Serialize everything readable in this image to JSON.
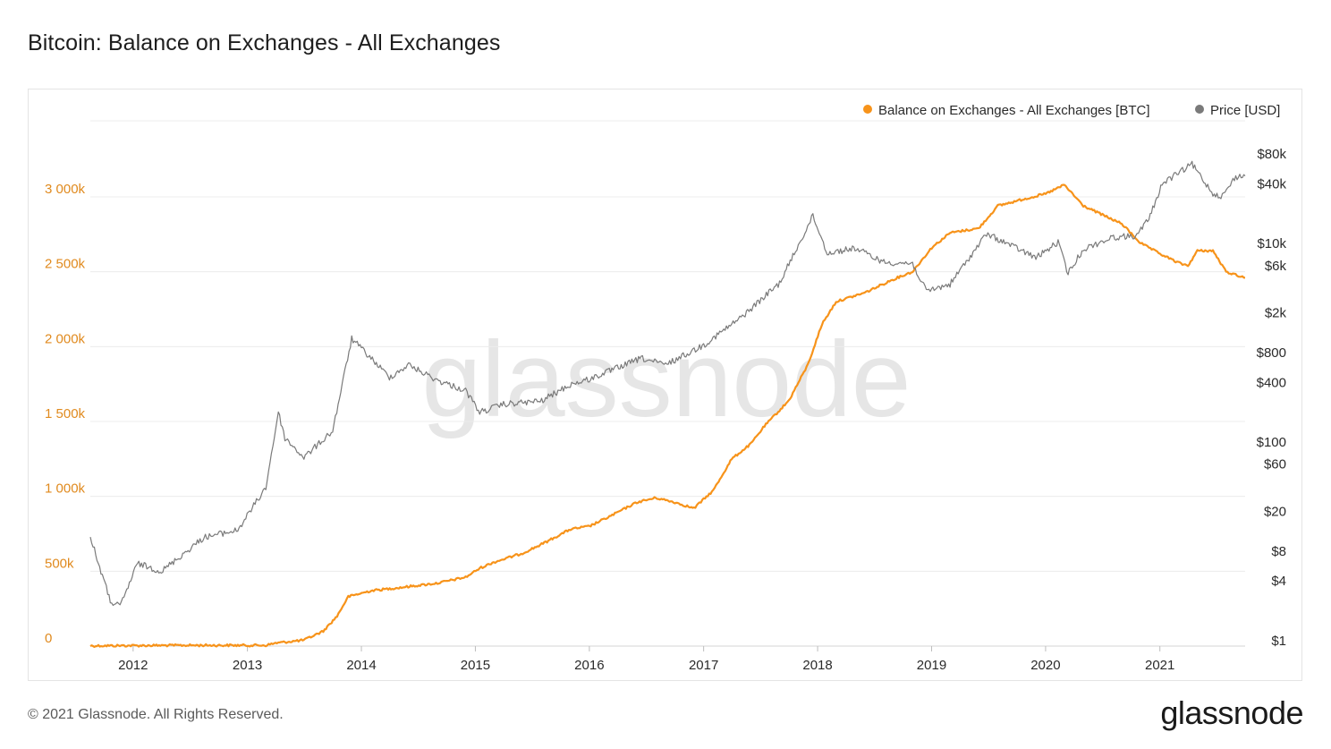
{
  "header": {
    "title": "Bitcoin: Balance on Exchanges - All Exchanges"
  },
  "footer": {
    "copyright": "© 2021 Glassnode. All Rights Reserved.",
    "logo": "glassnode"
  },
  "watermark": "glassnode",
  "chart_data": {
    "type": "line",
    "title": "Bitcoin: Balance on Exchanges - All Exchanges",
    "legend_position": "top-right",
    "grid": true,
    "x_ticks": [
      "2012",
      "2013",
      "2014",
      "2015",
      "2016",
      "2017",
      "2018",
      "2019",
      "2020",
      "2021"
    ],
    "y_left": {
      "range": [
        0,
        3000000
      ],
      "ticks": [
        {
          "value": 0,
          "label": "0"
        },
        {
          "value": 500000,
          "label": "500k"
        },
        {
          "value": 1000000,
          "label": "1 000k"
        },
        {
          "value": 1500000,
          "label": "1 500k"
        },
        {
          "value": 2000000,
          "label": "2 000k"
        },
        {
          "value": 2500000,
          "label": "2 500k"
        },
        {
          "value": 3000000,
          "label": "3 000k"
        }
      ]
    },
    "y_right": {
      "scale": "log",
      "ticks": [
        {
          "value": 1,
          "label": "$1"
        },
        {
          "value": 4,
          "label": "$4"
        },
        {
          "value": 8,
          "label": "$8"
        },
        {
          "value": 20,
          "label": "$20"
        },
        {
          "value": 60,
          "label": "$60"
        },
        {
          "value": 100,
          "label": "$100"
        },
        {
          "value": 400,
          "label": "$400"
        },
        {
          "value": 800,
          "label": "$800"
        },
        {
          "value": 2000,
          "label": "$2k"
        },
        {
          "value": 6000,
          "label": "$6k"
        },
        {
          "value": 10000,
          "label": "$10k"
        },
        {
          "value": 40000,
          "label": "$40k"
        },
        {
          "value": 80000,
          "label": "$80k"
        }
      ]
    },
    "series": [
      {
        "name": "Balance on Exchanges - All Exchanges [BTC]",
        "color": "#f7931a",
        "axis": "left",
        "points": [
          [
            "2011-08-17",
            2000
          ],
          [
            "2012-06-01",
            5000
          ],
          [
            "2013-03-01",
            5000
          ],
          [
            "2013-04-01",
            20000
          ],
          [
            "2013-07-01",
            40000
          ],
          [
            "2013-09-01",
            100000
          ],
          [
            "2013-10-15",
            200000
          ],
          [
            "2013-11-20",
            330000
          ],
          [
            "2014-02-01",
            370000
          ],
          [
            "2014-05-01",
            390000
          ],
          [
            "2014-09-01",
            420000
          ],
          [
            "2014-12-01",
            460000
          ],
          [
            "2015-01-15",
            520000
          ],
          [
            "2015-03-01",
            560000
          ],
          [
            "2015-06-01",
            620000
          ],
          [
            "2015-08-01",
            680000
          ],
          [
            "2015-11-01",
            780000
          ],
          [
            "2016-01-01",
            800000
          ],
          [
            "2016-03-01",
            860000
          ],
          [
            "2016-06-01",
            960000
          ],
          [
            "2016-08-01",
            990000
          ],
          [
            "2016-10-01",
            960000
          ],
          [
            "2016-12-01",
            920000
          ],
          [
            "2017-02-01",
            1040000
          ],
          [
            "2017-04-01",
            1250000
          ],
          [
            "2017-06-01",
            1350000
          ],
          [
            "2017-07-15",
            1470000
          ],
          [
            "2017-10-01",
            1640000
          ],
          [
            "2017-12-01",
            1880000
          ],
          [
            "2018-01-15",
            2150000
          ],
          [
            "2018-03-01",
            2300000
          ],
          [
            "2018-06-01",
            2360000
          ],
          [
            "2018-09-01",
            2450000
          ],
          [
            "2018-11-01",
            2500000
          ],
          [
            "2019-01-01",
            2660000
          ],
          [
            "2019-03-01",
            2760000
          ],
          [
            "2019-06-01",
            2790000
          ],
          [
            "2019-08-01",
            2940000
          ],
          [
            "2019-11-01",
            2990000
          ],
          [
            "2020-01-01",
            3020000
          ],
          [
            "2020-03-01",
            3080000
          ],
          [
            "2020-05-01",
            2940000
          ],
          [
            "2020-07-01",
            2880000
          ],
          [
            "2020-09-01",
            2820000
          ],
          [
            "2020-11-01",
            2690000
          ],
          [
            "2021-01-01",
            2620000
          ],
          [
            "2021-03-01",
            2560000
          ],
          [
            "2021-04-01",
            2540000
          ],
          [
            "2021-05-01",
            2640000
          ],
          [
            "2021-06-20",
            2640000
          ],
          [
            "2021-08-01",
            2500000
          ],
          [
            "2021-10-01",
            2460000
          ]
        ]
      },
      {
        "name": "Price [USD]",
        "color": "#7a7a7a",
        "axis": "right",
        "points": [
          [
            "2011-08-17",
            11
          ],
          [
            "2011-10-20",
            2.5
          ],
          [
            "2011-11-20",
            2.2
          ],
          [
            "2012-01-15",
            6
          ],
          [
            "2012-04-01",
            5
          ],
          [
            "2012-08-15",
            11
          ],
          [
            "2012-12-01",
            13
          ],
          [
            "2013-03-01",
            35
          ],
          [
            "2013-04-10",
            200
          ],
          [
            "2013-05-01",
            110
          ],
          [
            "2013-07-01",
            70
          ],
          [
            "2013-10-01",
            130
          ],
          [
            "2013-12-01",
            1100
          ],
          [
            "2014-02-01",
            700
          ],
          [
            "2014-04-01",
            450
          ],
          [
            "2014-06-01",
            600
          ],
          [
            "2014-09-01",
            420
          ],
          [
            "2014-12-01",
            330
          ],
          [
            "2015-01-15",
            200
          ],
          [
            "2015-04-01",
            240
          ],
          [
            "2015-08-01",
            260
          ],
          [
            "2015-11-01",
            380
          ],
          [
            "2016-01-01",
            430
          ],
          [
            "2016-06-15",
            700
          ],
          [
            "2016-09-01",
            600
          ],
          [
            "2017-01-01",
            950
          ],
          [
            "2017-05-01",
            1800
          ],
          [
            "2017-09-01",
            4000
          ],
          [
            "2017-12-17",
            19000
          ],
          [
            "2018-02-01",
            8000
          ],
          [
            "2018-05-01",
            9000
          ],
          [
            "2018-08-01",
            6500
          ],
          [
            "2018-11-01",
            6300
          ],
          [
            "2018-12-15",
            3300
          ],
          [
            "2019-03-01",
            3900
          ],
          [
            "2019-06-26",
            12500
          ],
          [
            "2019-09-01",
            10000
          ],
          [
            "2019-12-01",
            7200
          ],
          [
            "2020-02-10",
            10300
          ],
          [
            "2020-03-13",
            5000
          ],
          [
            "2020-05-01",
            8800
          ],
          [
            "2020-08-01",
            11500
          ],
          [
            "2020-10-20",
            12000
          ],
          [
            "2020-12-01",
            19000
          ],
          [
            "2021-01-08",
            40000
          ],
          [
            "2021-04-14",
            63000
          ],
          [
            "2021-06-20",
            32000
          ],
          [
            "2021-07-20",
            30000
          ],
          [
            "2021-09-01",
            47000
          ],
          [
            "2021-10-01",
            48000
          ]
        ]
      }
    ]
  }
}
